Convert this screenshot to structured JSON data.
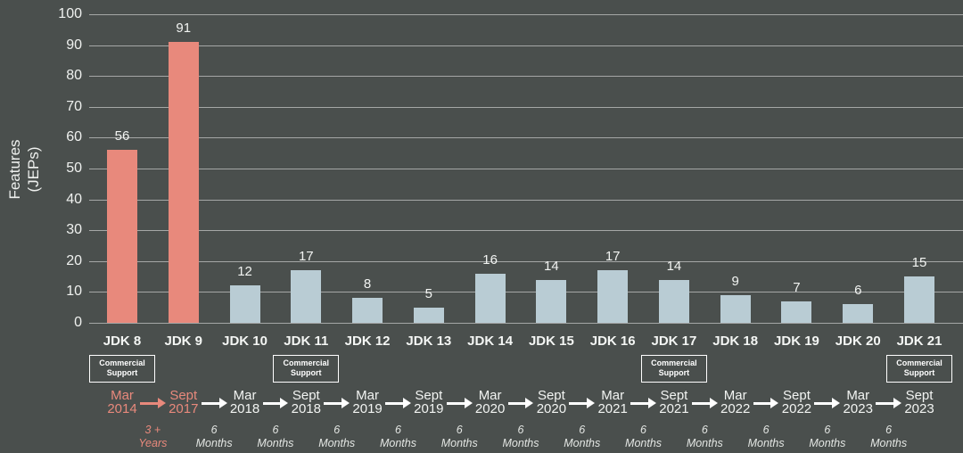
{
  "colors": {
    "background": "#4a4f4d",
    "accent": "#e8897c",
    "bar": "#b9ccd4",
    "text": "#f2f4f2"
  },
  "chart_data": {
    "type": "bar",
    "title": "",
    "xlabel": "",
    "ylabel": "Features (JEPs)",
    "ylabel_lines": [
      "Features",
      "(JEPs)"
    ],
    "ylim": [
      0,
      100
    ],
    "yticks": [
      0,
      10,
      20,
      30,
      40,
      50,
      60,
      70,
      80,
      90,
      100
    ],
    "grid": "horizontal",
    "legend": "none",
    "categories": [
      "JDK 8",
      "JDK 9",
      "JDK 10",
      "JDK 11",
      "JDK 12",
      "JDK 13",
      "JDK 14",
      "JDK 15",
      "JDK 16",
      "JDK 17",
      "JDK 18",
      "JDK 19",
      "JDK 20",
      "JDK 21"
    ],
    "values": [
      56,
      91,
      12,
      17,
      8,
      5,
      16,
      14,
      17,
      14,
      9,
      7,
      6,
      15
    ],
    "highlighted_categories": [
      "JDK 8",
      "JDK 9"
    ],
    "commercial_support": {
      "label_lines": [
        "Commercial",
        "Support"
      ],
      "releases": [
        "JDK 8",
        "JDK 11",
        "JDK 17",
        "JDK 21"
      ]
    },
    "timeline": {
      "dates": [
        {
          "month": "Mar",
          "year": "2014",
          "highlight": true
        },
        {
          "month": "Sept",
          "year": "2017",
          "highlight": true
        },
        {
          "month": "Mar",
          "year": "2018",
          "highlight": false
        },
        {
          "month": "Sept",
          "year": "2018",
          "highlight": false
        },
        {
          "month": "Mar",
          "year": "2019",
          "highlight": false
        },
        {
          "month": "Sept",
          "year": "2019",
          "highlight": false
        },
        {
          "month": "Mar",
          "year": "2020",
          "highlight": false
        },
        {
          "month": "Sept",
          "year": "2020",
          "highlight": false
        },
        {
          "month": "Mar",
          "year": "2021",
          "highlight": false
        },
        {
          "month": "Sept",
          "year": "2021",
          "highlight": false
        },
        {
          "month": "Mar",
          "year": "2022",
          "highlight": false
        },
        {
          "month": "Sept",
          "year": "2022",
          "highlight": false
        },
        {
          "month": "Mar",
          "year": "2023",
          "highlight": false
        },
        {
          "month": "Sept",
          "year": "2023",
          "highlight": false
        }
      ],
      "intervals": [
        {
          "lines": [
            "3 +",
            "Years"
          ],
          "highlight": true
        },
        {
          "lines": [
            "6",
            "Months"
          ],
          "highlight": false
        },
        {
          "lines": [
            "6",
            "Months"
          ],
          "highlight": false
        },
        {
          "lines": [
            "6",
            "Months"
          ],
          "highlight": false
        },
        {
          "lines": [
            "6",
            "Months"
          ],
          "highlight": false
        },
        {
          "lines": [
            "6",
            "Months"
          ],
          "highlight": false
        },
        {
          "lines": [
            "6",
            "Months"
          ],
          "highlight": false
        },
        {
          "lines": [
            "6",
            "Months"
          ],
          "highlight": false
        },
        {
          "lines": [
            "6",
            "Months"
          ],
          "highlight": false
        },
        {
          "lines": [
            "6",
            "Months"
          ],
          "highlight": false
        },
        {
          "lines": [
            "6",
            "Months"
          ],
          "highlight": false
        },
        {
          "lines": [
            "6",
            "Months"
          ],
          "highlight": false
        },
        {
          "lines": [
            "6",
            "Months"
          ],
          "highlight": false
        }
      ]
    }
  }
}
